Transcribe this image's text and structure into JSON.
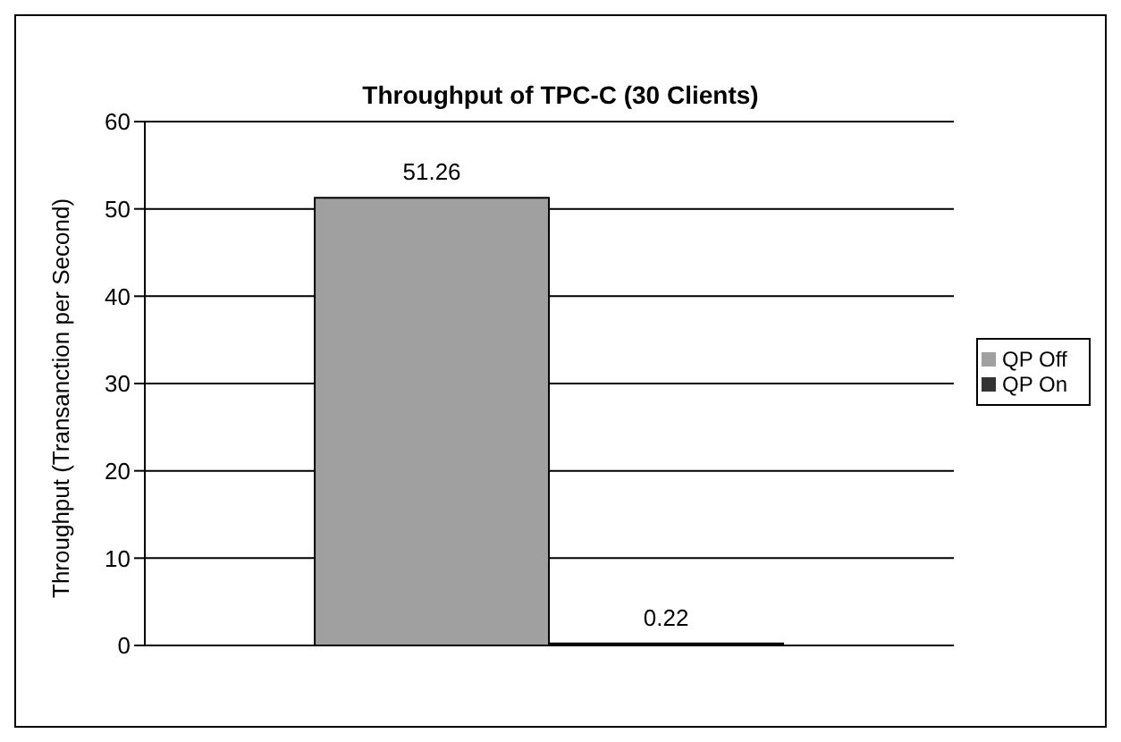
{
  "chart_data": {
    "type": "bar",
    "title": "Throughput of TPC-C (30 Clients)",
    "ylabel": "Throughput (Transanction per Second)",
    "categories": [
      null
    ],
    "series": [
      {
        "name": "QP Off",
        "color": "#a0a0a0",
        "values": [
          51.26
        ]
      },
      {
        "name": "QP On",
        "color": "#333333",
        "values": [
          0.22
        ]
      }
    ],
    "ylim": [
      0,
      60
    ],
    "yticks": [
      0,
      10,
      20,
      30,
      40,
      50,
      60
    ],
    "grid": "y",
    "legend": "right",
    "data_labels": true
  }
}
